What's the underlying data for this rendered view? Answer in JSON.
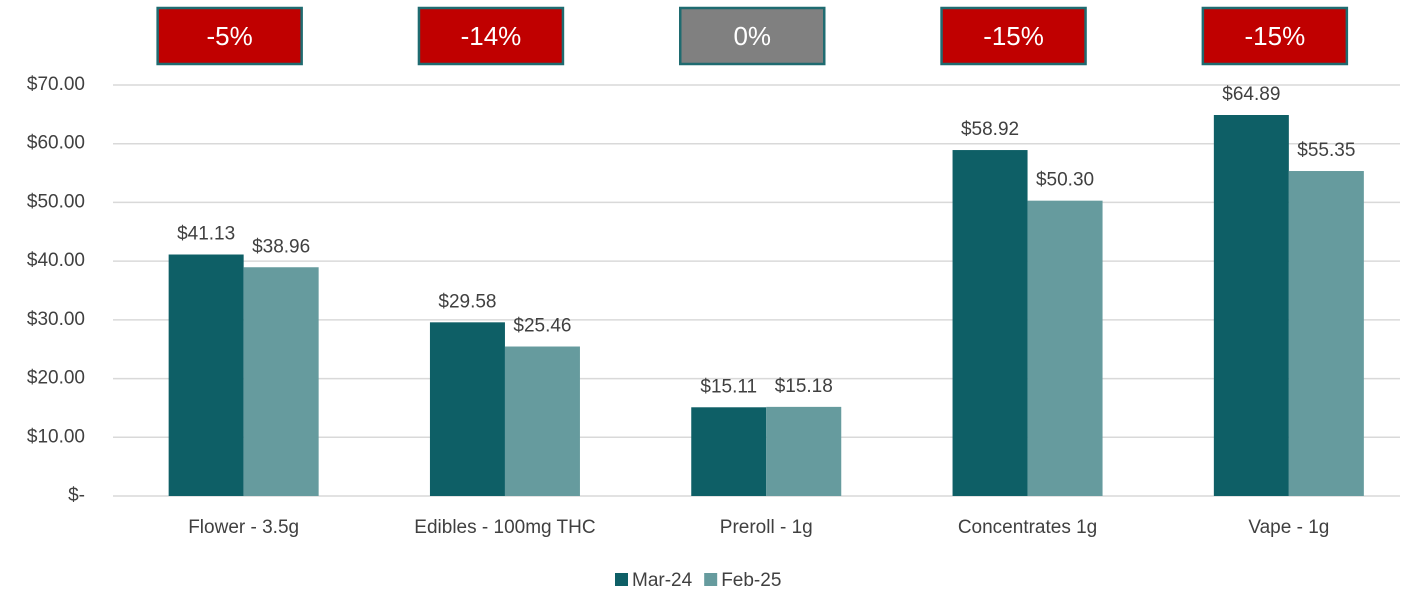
{
  "chart_data": {
    "type": "bar",
    "categories": [
      "Flower - 3.5g",
      "Edibles - 100mg THC",
      "Preroll - 1g",
      "Concentrates 1g",
      "Vape - 1g"
    ],
    "series": [
      {
        "name": "Mar-24",
        "color": "#0e5f66",
        "values": [
          41.13,
          29.58,
          15.11,
          58.92,
          64.89
        ],
        "value_labels": [
          "$41.13",
          "$29.58",
          "$15.11",
          "$58.92",
          "$64.89"
        ]
      },
      {
        "name": "Feb-25",
        "color": "#669b9e",
        "values": [
          38.96,
          25.46,
          15.18,
          50.3,
          55.35
        ],
        "value_labels": [
          "$38.96",
          "$25.46",
          "$15.18",
          "$50.30",
          "$55.35"
        ]
      }
    ],
    "annotations": [
      {
        "text": "-5%",
        "color": "#c00000"
      },
      {
        "text": "-14%",
        "color": "#c00000"
      },
      {
        "text": "0%",
        "color": "#808080"
      },
      {
        "text": "-15%",
        "color": "#c00000"
      },
      {
        "text": "-15%",
        "color": "#c00000"
      }
    ],
    "ylim": [
      0,
      70
    ],
    "yticks": [
      {
        "value": 0,
        "label": "$-"
      },
      {
        "value": 10,
        "label": "$10.00"
      },
      {
        "value": 20,
        "label": "$20.00"
      },
      {
        "value": 30,
        "label": "$30.00"
      },
      {
        "value": 40,
        "label": "$40.00"
      },
      {
        "value": 50,
        "label": "$50.00"
      },
      {
        "value": 60,
        "label": "$60.00"
      },
      {
        "value": 70,
        "label": "$70.00"
      }
    ],
    "grid": true,
    "legend": "bottom"
  }
}
